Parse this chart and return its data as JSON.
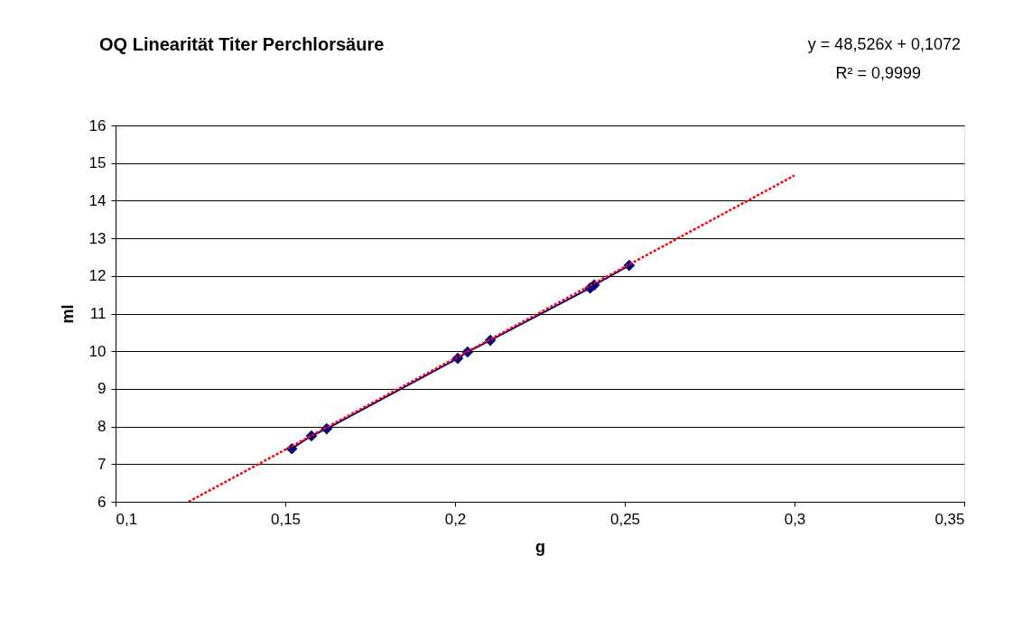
{
  "chart_data": {
    "type": "line",
    "title": "OQ Linearität Titer Perchlorsäure",
    "xlabel": "g",
    "ylabel": "ml",
    "annotations": [
      "y = 48,526x + 0,1072",
      "R² = 0,9999"
    ],
    "series": [
      {
        "type": "line",
        "color": "#000080",
        "marker": "diamond",
        "line_style": "solid",
        "x": [
          0.1519,
          0.1577,
          0.1622,
          0.2008,
          0.2037,
          0.2104,
          0.2398,
          0.241,
          0.2513
        ],
        "values": [
          7.41,
          7.75,
          7.94,
          9.81,
          9.98,
          10.29,
          11.68,
          11.76,
          12.28
        ]
      },
      {
        "type": "line",
        "color": "#ff0000",
        "marker": "none",
        "line_style": "dotted",
        "x": [
          0.1215,
          0.3
        ],
        "values": [
          6.0,
          14.67
        ]
      }
    ],
    "xlim": [
      0.1,
      0.35
    ],
    "xticks": [
      {
        "value": 0.1,
        "label": "0,1"
      },
      {
        "value": 0.15,
        "label": "0,15"
      },
      {
        "value": 0.2,
        "label": "0,2"
      },
      {
        "value": 0.25,
        "label": "0,25"
      },
      {
        "value": 0.3,
        "label": "0,3"
      },
      {
        "value": 0.35,
        "label": "0,35"
      }
    ],
    "ylim": [
      6,
      16
    ],
    "yticks": [
      6,
      7,
      8,
      9,
      10,
      11,
      12,
      13,
      14,
      15,
      16
    ],
    "grid": "y"
  }
}
